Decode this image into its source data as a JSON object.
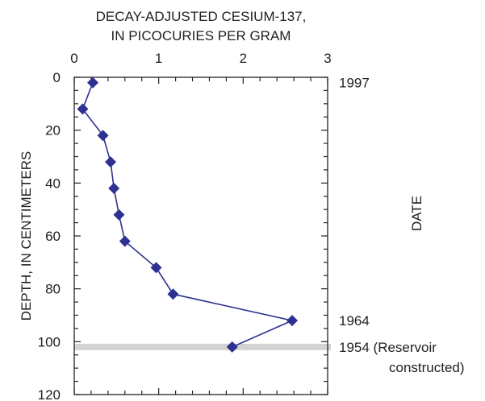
{
  "chart_data": {
    "type": "scatter",
    "title_lines": [
      "DECAY-ADJUSTED CESIUM-137,",
      "IN PICOCURIES PER GRAM"
    ],
    "xlabel": "DECAY-ADJUSTED CESIUM-137, IN PICOCURIES PER GRAM",
    "ylabel": "DEPTH, IN CENTIMETERS",
    "right_axis_label": "DATE",
    "xlim": [
      0,
      3
    ],
    "ylim": [
      0,
      120
    ],
    "y_inverted": true,
    "x_ticks": [
      "0",
      "1",
      "2",
      "3"
    ],
    "y_ticks": [
      "0",
      "20",
      "40",
      "60",
      "80",
      "100",
      "120"
    ],
    "grid": false,
    "series": [
      {
        "color": "#2e3192",
        "marker": "diamond",
        "points": [
          {
            "x": 0.22,
            "y": 2
          },
          {
            "x": 0.1,
            "y": 12
          },
          {
            "x": 0.34,
            "y": 22
          },
          {
            "x": 0.43,
            "y": 32
          },
          {
            "x": 0.47,
            "y": 42
          },
          {
            "x": 0.53,
            "y": 52
          },
          {
            "x": 0.6,
            "y": 62
          },
          {
            "x": 0.97,
            "y": 72
          },
          {
            "x": 1.17,
            "y": 82
          },
          {
            "x": 2.58,
            "y": 92
          },
          {
            "x": 1.87,
            "y": 102
          }
        ]
      }
    ],
    "reference_band": {
      "y": 102,
      "color": "#d3d3d3"
    },
    "date_annotations": [
      {
        "depth": 2,
        "lines": [
          "1997"
        ]
      },
      {
        "depth": 92,
        "lines": [
          "1964"
        ]
      },
      {
        "depth": 102,
        "lines": [
          "1954 (Reservoir",
          "constructed)"
        ]
      }
    ]
  }
}
